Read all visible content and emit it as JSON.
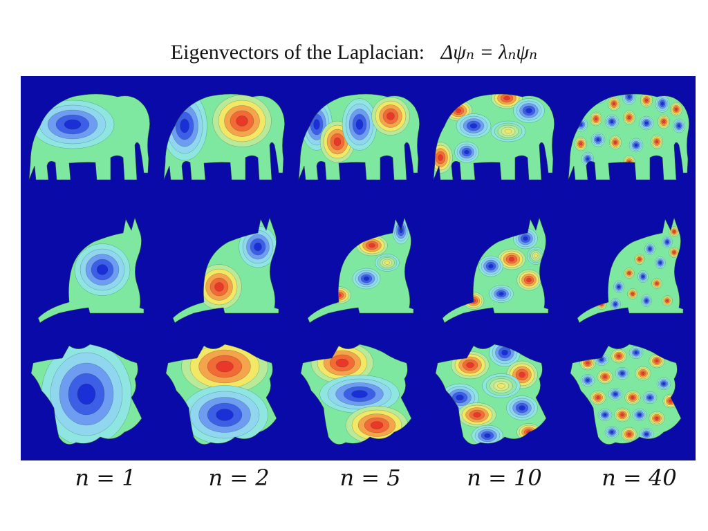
{
  "title": {
    "text": "Eigenvectors of the Laplacian:",
    "equation": "Δψₙ = λₙψₙ"
  },
  "colors": {
    "background": "#0a0aa8",
    "shape_base": "#7fe8a0",
    "blue_core": "#1a2fd6",
    "red_core": "#e8382a",
    "yellow": "#f2e866",
    "cyan": "#8fe6e0"
  },
  "rows": [
    {
      "shape": "elephant"
    },
    {
      "shape": "cat"
    },
    {
      "shape": "france"
    }
  ],
  "columns": [
    {
      "label": "n = 1"
    },
    {
      "label": "n = 2"
    },
    {
      "label": "n = 5"
    },
    {
      "label": "n = 10"
    },
    {
      "label": "n = 40"
    }
  ]
}
